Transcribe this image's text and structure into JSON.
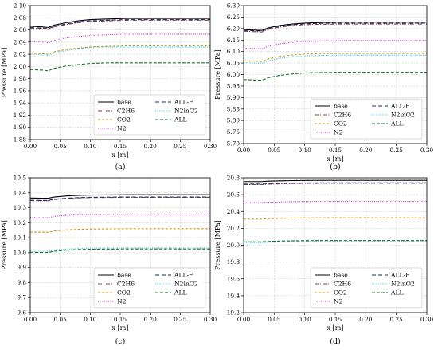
{
  "series_styles": [
    {
      "name": "base",
      "color": "#000000",
      "dash": ""
    },
    {
      "name": "C2H6",
      "color": "#8b3a3a",
      "dash": "5,2,1,2"
    },
    {
      "name": "CO2",
      "color": "#d09a20",
      "dash": "3,2"
    },
    {
      "name": "N2",
      "color": "#c21fd0",
      "dash": "1,1.6"
    },
    {
      "name": "ALL-F",
      "color": "#1a2e6e",
      "dash": "5,3"
    },
    {
      "name": "N2inO2",
      "color": "#1ec6e6",
      "dash": "1,1.6"
    },
    {
      "name": "ALL",
      "color": "#1a6e2a",
      "dash": "4,2"
    }
  ],
  "chart_data": [
    {
      "type": "line",
      "panel": "(a)",
      "xlabel": "x [m]",
      "ylabel": "Pressure [MPa]",
      "xlim": [
        0,
        0.3
      ],
      "ylim": [
        1.88,
        2.1
      ],
      "grid": true,
      "legend": "lower-right",
      "xticks": [
        "0.00",
        "0.05",
        "0.10",
        "0.15",
        "0.20",
        "0.25",
        "0.30"
      ],
      "yticks": [
        "1.88",
        "1.90",
        "1.92",
        "1.94",
        "1.96",
        "1.98",
        "2.00",
        "2.02",
        "2.04",
        "2.06",
        "2.08",
        "2.10"
      ],
      "x": [
        0,
        0.02,
        0.03,
        0.04,
        0.06,
        0.08,
        0.1,
        0.13,
        0.16,
        0.2,
        0.25,
        0.3
      ],
      "series": [
        {
          "name": "base",
          "values": [
            2.066,
            2.065,
            2.064,
            2.068,
            2.072,
            2.075,
            2.077,
            2.078,
            2.079,
            2.079,
            2.079,
            2.079
          ]
        },
        {
          "name": "C2H6",
          "values": [
            2.063,
            2.062,
            2.061,
            2.065,
            2.069,
            2.072,
            2.074,
            2.075,
            2.076,
            2.076,
            2.076,
            2.076
          ]
        },
        {
          "name": "CO2",
          "values": [
            2.022,
            2.021,
            2.02,
            2.024,
            2.028,
            2.03,
            2.032,
            2.033,
            2.034,
            2.034,
            2.034,
            2.034
          ]
        },
        {
          "name": "N2",
          "values": [
            2.041,
            2.04,
            2.039,
            2.043,
            2.047,
            2.049,
            2.051,
            2.052,
            2.053,
            2.053,
            2.053,
            2.053
          ]
        },
        {
          "name": "ALL-F",
          "values": [
            2.064,
            2.063,
            2.062,
            2.066,
            2.07,
            2.073,
            2.075,
            2.076,
            2.077,
            2.077,
            2.077,
            2.077
          ]
        },
        {
          "name": "N2inO2",
          "values": [
            2.02,
            2.019,
            2.018,
            2.022,
            2.026,
            2.029,
            2.031,
            2.032,
            2.032,
            2.032,
            2.032,
            2.032
          ]
        },
        {
          "name": "ALL",
          "values": [
            1.995,
            1.994,
            1.993,
            1.997,
            2.001,
            2.003,
            2.005,
            2.006,
            2.006,
            2.006,
            2.006,
            2.006
          ]
        }
      ]
    },
    {
      "type": "line",
      "panel": "(b)",
      "xlabel": "x [m]",
      "ylabel": "Pressure [MPa]",
      "xlim": [
        0,
        0.3
      ],
      "ylim": [
        5.7,
        6.3
      ],
      "grid": true,
      "legend": "lower-right",
      "xticks": [
        "0.00",
        "0.05",
        "0.10",
        "0.15",
        "0.20",
        "0.25",
        "0.30"
      ],
      "yticks": [
        "5.70",
        "5.75",
        "5.80",
        "5.85",
        "5.90",
        "5.95",
        "6.00",
        "6.05",
        "6.10",
        "6.15",
        "6.20",
        "6.25",
        "6.30"
      ],
      "x": [
        0,
        0.02,
        0.03,
        0.04,
        0.06,
        0.08,
        0.1,
        0.13,
        0.16,
        0.2,
        0.25,
        0.3
      ],
      "series": [
        {
          "name": "base",
          "values": [
            6.195,
            6.193,
            6.192,
            6.203,
            6.214,
            6.22,
            6.224,
            6.227,
            6.228,
            6.228,
            6.228,
            6.228
          ]
        },
        {
          "name": "C2H6",
          "values": [
            6.188,
            6.186,
            6.185,
            6.196,
            6.207,
            6.213,
            6.217,
            6.219,
            6.22,
            6.22,
            6.22,
            6.22
          ]
        },
        {
          "name": "CO2",
          "values": [
            6.06,
            6.058,
            6.057,
            6.068,
            6.079,
            6.085,
            6.089,
            6.091,
            6.092,
            6.092,
            6.092,
            6.092
          ]
        },
        {
          "name": "N2",
          "values": [
            6.115,
            6.113,
            6.112,
            6.123,
            6.134,
            6.14,
            6.144,
            6.146,
            6.147,
            6.147,
            6.147,
            6.147
          ]
        },
        {
          "name": "ALL-F",
          "values": [
            6.192,
            6.19,
            6.189,
            6.2,
            6.211,
            6.217,
            6.221,
            6.223,
            6.224,
            6.224,
            6.224,
            6.224
          ]
        },
        {
          "name": "N2inO2",
          "values": [
            6.052,
            6.05,
            6.049,
            6.06,
            6.071,
            6.077,
            6.081,
            6.083,
            6.084,
            6.084,
            6.084,
            6.084
          ]
        },
        {
          "name": "ALL",
          "values": [
            5.978,
            5.976,
            5.975,
            5.986,
            5.997,
            6.003,
            6.007,
            6.009,
            6.01,
            6.01,
            6.01,
            6.01
          ]
        }
      ]
    },
    {
      "type": "line",
      "panel": "(c)",
      "xlabel": "x [m]",
      "ylabel": "Pressure [MPa]",
      "xlim": [
        0,
        0.3
      ],
      "ylim": [
        9.6,
        10.5
      ],
      "grid": true,
      "legend": "lower-right",
      "xticks": [
        "0.00",
        "0.05",
        "0.10",
        "0.15",
        "0.20",
        "0.25",
        "0.30"
      ],
      "yticks": [
        "9.6",
        "9.7",
        "9.8",
        "9.9",
        "10.0",
        "10.1",
        "10.2",
        "10.3",
        "10.4",
        "10.5"
      ],
      "x": [
        0,
        0.02,
        0.03,
        0.04,
        0.06,
        0.08,
        0.1,
        0.13,
        0.16,
        0.2,
        0.25,
        0.3
      ],
      "series": [
        {
          "name": "base",
          "values": [
            10.365,
            10.364,
            10.364,
            10.372,
            10.379,
            10.383,
            10.385,
            10.386,
            10.387,
            10.387,
            10.387,
            10.387
          ]
        },
        {
          "name": "C2H6",
          "values": [
            10.348,
            10.347,
            10.347,
            10.355,
            10.362,
            10.366,
            10.368,
            10.369,
            10.37,
            10.37,
            10.37,
            10.37
          ]
        },
        {
          "name": "CO2",
          "values": [
            10.138,
            10.137,
            10.137,
            10.145,
            10.152,
            10.156,
            10.158,
            10.159,
            10.16,
            10.16,
            10.16,
            10.16
          ]
        },
        {
          "name": "N2",
          "values": [
            10.235,
            10.234,
            10.234,
            10.242,
            10.249,
            10.253,
            10.255,
            10.256,
            10.257,
            10.257,
            10.257,
            10.257
          ]
        },
        {
          "name": "ALL-F",
          "values": [
            10.35,
            10.349,
            10.349,
            10.357,
            10.364,
            10.368,
            10.37,
            10.371,
            10.372,
            10.372,
            10.372,
            10.372
          ]
        },
        {
          "name": "N2inO2",
          "values": [
            10.01,
            10.009,
            10.009,
            10.017,
            10.024,
            10.028,
            10.03,
            10.031,
            10.032,
            10.032,
            10.032,
            10.032
          ]
        },
        {
          "name": "ALL",
          "values": [
            10.003,
            10.002,
            10.002,
            10.01,
            10.017,
            10.021,
            10.023,
            10.024,
            10.025,
            10.025,
            10.025,
            10.025
          ]
        }
      ]
    },
    {
      "type": "line",
      "panel": "(d)",
      "xlabel": "x [m]",
      "ylabel": "Pressure [MPa]",
      "xlim": [
        0,
        0.3
      ],
      "ylim": [
        19.2,
        20.8
      ],
      "grid": true,
      "legend": "lower-right",
      "xticks": [
        "0.00",
        "0.05",
        "0.10",
        "0.15",
        "0.20",
        "0.25",
        "0.30"
      ],
      "yticks": [
        "19.2",
        "19.4",
        "19.6",
        "19.8",
        "20.0",
        "20.2",
        "20.4",
        "20.6",
        "20.8"
      ],
      "x": [
        0,
        0.02,
        0.03,
        0.04,
        0.06,
        0.08,
        0.1,
        0.13,
        0.16,
        0.2,
        0.25,
        0.3
      ],
      "series": [
        {
          "name": "base",
          "values": [
            20.755,
            20.755,
            20.755,
            20.76,
            20.764,
            20.767,
            20.769,
            20.77,
            20.77,
            20.77,
            20.77,
            20.77
          ]
        },
        {
          "name": "C2H6",
          "values": [
            20.72,
            20.72,
            20.72,
            20.725,
            20.729,
            20.732,
            20.734,
            20.735,
            20.735,
            20.735,
            20.735,
            20.735
          ]
        },
        {
          "name": "CO2",
          "values": [
            20.31,
            20.31,
            20.31,
            20.315,
            20.319,
            20.322,
            20.324,
            20.325,
            20.325,
            20.325,
            20.325,
            20.325
          ]
        },
        {
          "name": "N2",
          "values": [
            20.505,
            20.505,
            20.505,
            20.51,
            20.514,
            20.517,
            20.519,
            20.52,
            20.52,
            20.52,
            20.52,
            20.52
          ]
        },
        {
          "name": "ALL-F",
          "values": [
            20.725,
            20.725,
            20.725,
            20.73,
            20.734,
            20.737,
            20.739,
            20.74,
            20.74,
            20.74,
            20.74,
            20.74
          ]
        },
        {
          "name": "N2inO2",
          "values": [
            20.03,
            20.03,
            20.03,
            20.035,
            20.039,
            20.042,
            20.044,
            20.045,
            20.045,
            20.045,
            20.045,
            20.045
          ]
        },
        {
          "name": "ALL",
          "values": [
            20.04,
            20.04,
            20.04,
            20.045,
            20.049,
            20.052,
            20.054,
            20.055,
            20.055,
            20.055,
            20.055,
            20.055
          ]
        }
      ]
    }
  ]
}
